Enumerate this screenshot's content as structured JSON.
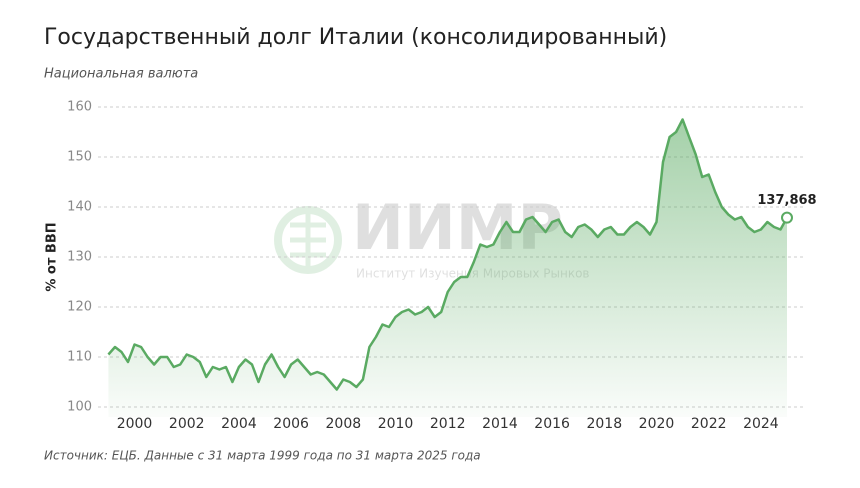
{
  "chart_data": {
    "type": "line",
    "title": "Государственный долг Италии (консолидированный)",
    "subtitle": "Национальная валюта",
    "y_label": "% от ВВП",
    "source": "Источник: ЕЦБ. Данные с 31 марта 1999 года по 31 марта 2025 года",
    "watermark": {
      "title": "ИИМР",
      "subtitle": "Институт Изучения Мировых Рынков"
    },
    "color": "#5aaa62",
    "x": [
      1999,
      1999.25,
      1999.5,
      1999.75,
      2000,
      2000.25,
      2000.5,
      2000.75,
      2001,
      2001.25,
      2001.5,
      2001.75,
      2002,
      2002.25,
      2002.5,
      2002.75,
      2003,
      2003.25,
      2003.5,
      2003.75,
      2004,
      2004.25,
      2004.5,
      2004.75,
      2005,
      2005.25,
      2005.5,
      2005.75,
      2006,
      2006.25,
      2006.5,
      2006.75,
      2007,
      2007.25,
      2007.5,
      2007.75,
      2008,
      2008.25,
      2008.5,
      2008.75,
      2009,
      2009.25,
      2009.5,
      2009.75,
      2010,
      2010.25,
      2010.5,
      2010.75,
      2011,
      2011.25,
      2011.5,
      2011.75,
      2012,
      2012.25,
      2012.5,
      2012.75,
      2013,
      2013.25,
      2013.5,
      2013.75,
      2014,
      2014.25,
      2014.5,
      2014.75,
      2015,
      2015.25,
      2015.5,
      2015.75,
      2016,
      2016.25,
      2016.5,
      2016.75,
      2017,
      2017.25,
      2017.5,
      2017.75,
      2018,
      2018.25,
      2018.5,
      2018.75,
      2019,
      2019.25,
      2019.5,
      2019.75,
      2020,
      2020.25,
      2020.5,
      2020.75,
      2021,
      2021.25,
      2021.5,
      2021.75,
      2022,
      2022.25,
      2022.5,
      2022.75,
      2023,
      2023.25,
      2023.5,
      2023.75,
      2024,
      2024.25,
      2024.5,
      2024.75,
      2025
    ],
    "values": [
      110.5,
      112,
      111,
      109,
      112.5,
      112,
      110,
      108.5,
      110,
      110,
      108,
      108.5,
      110.5,
      110,
      109,
      106,
      108,
      107.5,
      108,
      105,
      108,
      109.5,
      108.5,
      105,
      108.5,
      110.5,
      108,
      106,
      108.5,
      109.5,
      108,
      106.5,
      107,
      106.5,
      105,
      103.5,
      105.5,
      105,
      104,
      105.5,
      112,
      114,
      116.5,
      116,
      118,
      119,
      119.5,
      118.5,
      119,
      120,
      118,
      119,
      123,
      125,
      126,
      126,
      129,
      132.5,
      132,
      132.5,
      135,
      137,
      135,
      135,
      137.5,
      138,
      136.5,
      135,
      137,
      137.5,
      135,
      134,
      136,
      136.5,
      135.5,
      134,
      135.5,
      136,
      134.5,
      134.5,
      136,
      137,
      136,
      134.5,
      137,
      149,
      154,
      155,
      157.5,
      154,
      150.5,
      146,
      146.5,
      143,
      140,
      138.5,
      137.5,
      138,
      136,
      135,
      135.5,
      137,
      136,
      135.5,
      137.868
    ],
    "annotations": [
      {
        "x": 2025,
        "text": "137,868"
      }
    ],
    "xlim": [
      1998.6,
      2025.0
    ],
    "xticks": [
      2000,
      2002,
      2004,
      2006,
      2008,
      2010,
      2012,
      2014,
      2016,
      2018,
      2020,
      2022,
      2024
    ],
    "ylim": [
      98,
      160
    ],
    "yticks": [
      100,
      110,
      120,
      130,
      140,
      150,
      160
    ],
    "grid": true
  }
}
